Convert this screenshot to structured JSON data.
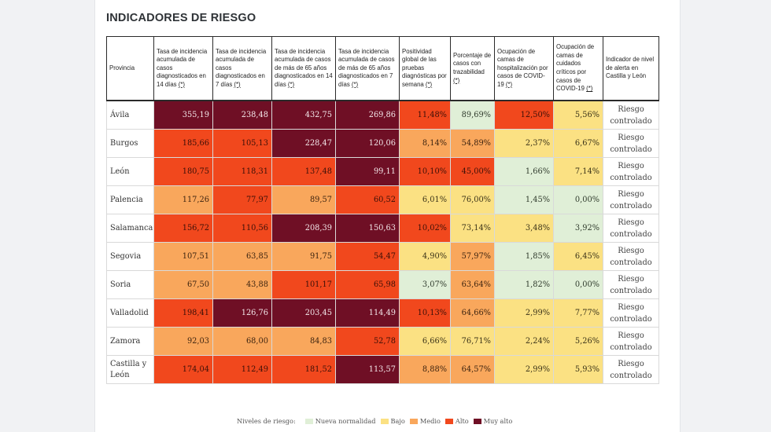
{
  "section_title": "INDICADORES DE RIESGO",
  "levels": {
    "nueva": {
      "label": "Nueva normalidad",
      "color": "#e0efd7"
    },
    "bajo": {
      "label": "Bajo",
      "color": "#fbe183"
    },
    "medio": {
      "label": "Medio",
      "color": "#f9a75c"
    },
    "alto": {
      "label": "Alto",
      "color": "#f1481d"
    },
    "muy": {
      "label": "Muy alto",
      "color": "#6f0f25"
    }
  },
  "legend": {
    "title": "Niveles de riesgo:",
    "items": [
      "nueva",
      "bajo",
      "medio",
      "alto",
      "muy"
    ]
  },
  "table": {
    "columns": [
      {
        "text": "Provincia",
        "note": ""
      },
      {
        "text": "Tasa de incidencia acumulada de casos diagnosticados en 14 días ",
        "note": "(*)"
      },
      {
        "text": "Tasa de incidencia acumulada de casos diagnosticados en 7 días ",
        "note": "(*)"
      },
      {
        "text": "Tasa de incidencia acumulada de casos de más de 65 años diagnosticados en 14 días ",
        "note": "(*)"
      },
      {
        "text": "Tasa de incidencia acumulada de casos de más de 65 años diagnosticados en 7 días ",
        "note": "(*)"
      },
      {
        "text": "Positividad global de las pruebas diagnósticas por semana ",
        "note": "(*)"
      },
      {
        "text": "Porcentaje de casos con trazabilidad ",
        "note": "(*)"
      },
      {
        "text": "Ocupación de camas de hospitalización por casos de COVID-19 ",
        "note": "(*)"
      },
      {
        "text": "Ocupación de camas de cuidados críticos por casos de COVID-19 ",
        "note": "(*)"
      },
      {
        "text": "Indicador de nivel de alerta en Castilla y León",
        "note": ""
      }
    ],
    "rows": [
      {
        "province": "Ávila",
        "risk": "Riesgo controlado",
        "cells": [
          {
            "value": "355,19",
            "level": "muy"
          },
          {
            "value": "238,48",
            "level": "muy"
          },
          {
            "value": "432,75",
            "level": "muy"
          },
          {
            "value": "269,86",
            "level": "muy"
          },
          {
            "value": "11,48%",
            "level": "alto"
          },
          {
            "value": "89,69%",
            "level": "nueva"
          },
          {
            "value": "12,50%",
            "level": "alto"
          },
          {
            "value": "5,56%",
            "level": "bajo"
          }
        ]
      },
      {
        "province": "Burgos",
        "risk": "Riesgo controlado",
        "cells": [
          {
            "value": "185,66",
            "level": "alto"
          },
          {
            "value": "105,13",
            "level": "alto"
          },
          {
            "value": "228,47",
            "level": "muy"
          },
          {
            "value": "120,06",
            "level": "muy"
          },
          {
            "value": "8,14%",
            "level": "medio"
          },
          {
            "value": "54,89%",
            "level": "medio"
          },
          {
            "value": "2,37%",
            "level": "bajo"
          },
          {
            "value": "6,67%",
            "level": "bajo"
          }
        ]
      },
      {
        "province": "León",
        "risk": "Riesgo controlado",
        "cells": [
          {
            "value": "180,75",
            "level": "alto"
          },
          {
            "value": "118,31",
            "level": "alto"
          },
          {
            "value": "137,48",
            "level": "alto"
          },
          {
            "value": "99,11",
            "level": "muy"
          },
          {
            "value": "10,10%",
            "level": "alto"
          },
          {
            "value": "45,00%",
            "level": "alto"
          },
          {
            "value": "1,66%",
            "level": "nueva"
          },
          {
            "value": "7,14%",
            "level": "bajo"
          }
        ]
      },
      {
        "province": "Palencia",
        "risk": "Riesgo controlado",
        "cells": [
          {
            "value": "117,26",
            "level": "medio"
          },
          {
            "value": "77,97",
            "level": "alto"
          },
          {
            "value": "89,57",
            "level": "medio"
          },
          {
            "value": "60,52",
            "level": "alto"
          },
          {
            "value": "6,01%",
            "level": "bajo"
          },
          {
            "value": "76,00%",
            "level": "bajo"
          },
          {
            "value": "1,45%",
            "level": "nueva"
          },
          {
            "value": "0,00%",
            "level": "nueva"
          }
        ]
      },
      {
        "province": "Salamanca",
        "risk": "Riesgo controlado",
        "cells": [
          {
            "value": "156,72",
            "level": "alto"
          },
          {
            "value": "110,56",
            "level": "alto"
          },
          {
            "value": "208,39",
            "level": "muy"
          },
          {
            "value": "150,63",
            "level": "muy"
          },
          {
            "value": "10,02%",
            "level": "alto"
          },
          {
            "value": "73,14%",
            "level": "bajo"
          },
          {
            "value": "3,48%",
            "level": "bajo"
          },
          {
            "value": "3,92%",
            "level": "nueva"
          }
        ]
      },
      {
        "province": "Segovia",
        "risk": "Riesgo controlado",
        "cells": [
          {
            "value": "107,51",
            "level": "medio"
          },
          {
            "value": "63,85",
            "level": "medio"
          },
          {
            "value": "91,75",
            "level": "medio"
          },
          {
            "value": "54,47",
            "level": "alto"
          },
          {
            "value": "4,90%",
            "level": "bajo"
          },
          {
            "value": "57,97%",
            "level": "medio"
          },
          {
            "value": "1,85%",
            "level": "nueva"
          },
          {
            "value": "6,45%",
            "level": "bajo"
          }
        ]
      },
      {
        "province": "Soria",
        "risk": "Riesgo controlado",
        "cells": [
          {
            "value": "67,50",
            "level": "medio"
          },
          {
            "value": "43,88",
            "level": "medio"
          },
          {
            "value": "101,17",
            "level": "alto"
          },
          {
            "value": "65,98",
            "level": "alto"
          },
          {
            "value": "3,07%",
            "level": "nueva"
          },
          {
            "value": "63,64%",
            "level": "medio"
          },
          {
            "value": "1,82%",
            "level": "nueva"
          },
          {
            "value": "0,00%",
            "level": "nueva"
          }
        ]
      },
      {
        "province": "Valladolid",
        "risk": "Riesgo controlado",
        "cells": [
          {
            "value": "198,41",
            "level": "alto"
          },
          {
            "value": "126,76",
            "level": "muy"
          },
          {
            "value": "203,45",
            "level": "muy"
          },
          {
            "value": "114,49",
            "level": "muy"
          },
          {
            "value": "10,13%",
            "level": "alto"
          },
          {
            "value": "64,66%",
            "level": "medio"
          },
          {
            "value": "2,99%",
            "level": "bajo"
          },
          {
            "value": "7,77%",
            "level": "bajo"
          }
        ]
      },
      {
        "province": "Zamora",
        "risk": "Riesgo controlado",
        "cells": [
          {
            "value": "92,03",
            "level": "medio"
          },
          {
            "value": "68,00",
            "level": "medio"
          },
          {
            "value": "84,83",
            "level": "medio"
          },
          {
            "value": "52,78",
            "level": "alto"
          },
          {
            "value": "6,66%",
            "level": "bajo"
          },
          {
            "value": "76,71%",
            "level": "bajo"
          },
          {
            "value": "2,24%",
            "level": "bajo"
          },
          {
            "value": "5,26%",
            "level": "bajo"
          }
        ]
      },
      {
        "province": "Castilla y León",
        "risk": "Riesgo controlado",
        "cells": [
          {
            "value": "174,04",
            "level": "alto"
          },
          {
            "value": "112,49",
            "level": "alto"
          },
          {
            "value": "181,52",
            "level": "alto"
          },
          {
            "value": "113,57",
            "level": "muy"
          },
          {
            "value": "8,88%",
            "level": "medio"
          },
          {
            "value": "64,57%",
            "level": "medio"
          },
          {
            "value": "2,99%",
            "level": "bajo"
          },
          {
            "value": "5,93%",
            "level": "bajo"
          }
        ]
      }
    ]
  }
}
